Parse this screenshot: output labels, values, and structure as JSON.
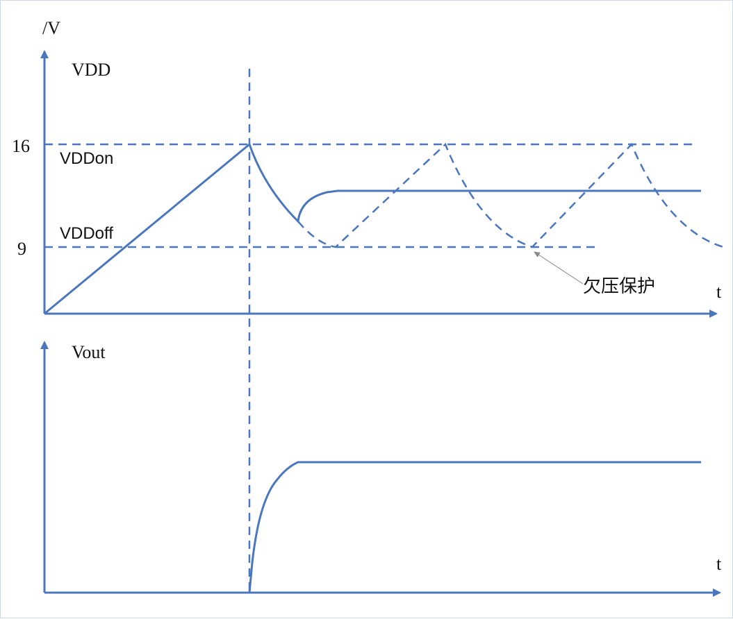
{
  "diagram": {
    "colors": {
      "wave": "#4a76bd",
      "axis": "#4a76bd",
      "text": "#111111",
      "annotation_line": "#9a9a9a"
    },
    "top_plot": {
      "y_unit": "/V",
      "signal_label": "VDD",
      "x_axis_label": "t",
      "levels": {
        "on": {
          "value": "16",
          "name": "VDDon"
        },
        "off": {
          "value": "9",
          "name": "VDDoff"
        }
      },
      "annotation": "欠压保护"
    },
    "bottom_plot": {
      "signal_label": "Vout",
      "x_axis_label": "t"
    }
  }
}
